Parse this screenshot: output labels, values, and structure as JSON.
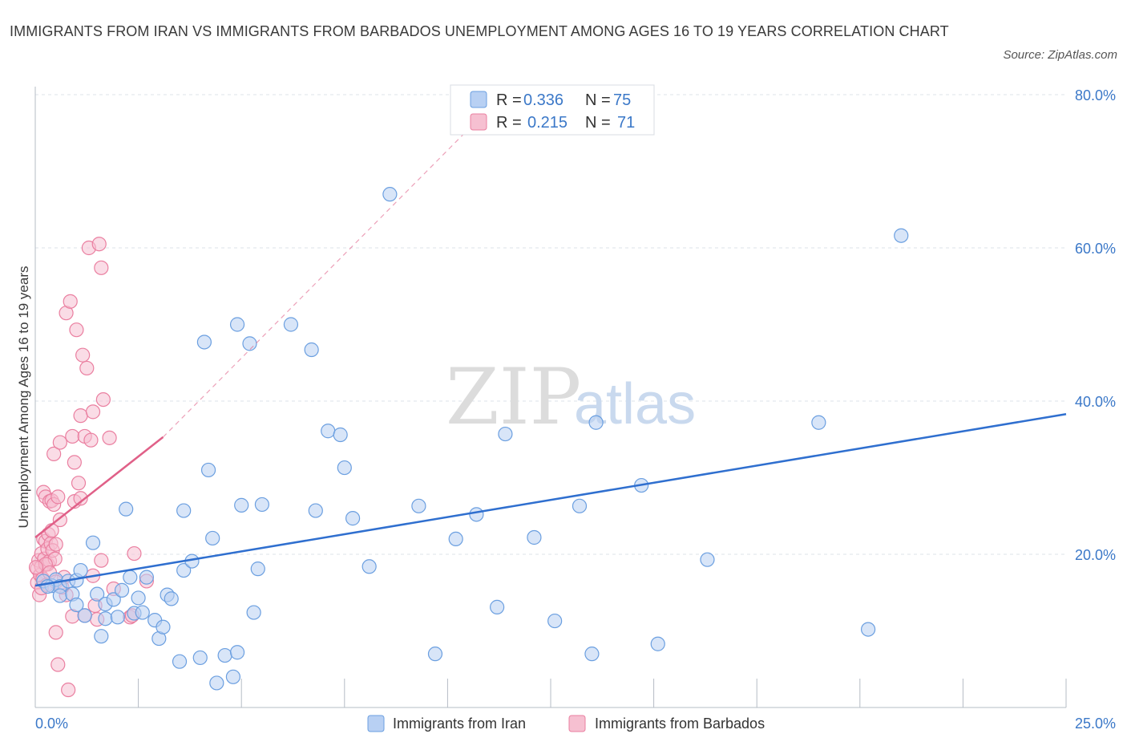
{
  "title": "IMMIGRANTS FROM IRAN VS IMMIGRANTS FROM BARBADOS UNEMPLOYMENT AMONG AGES 16 TO 19 YEARS CORRELATION CHART",
  "source": "Source: ZipAtlas.com",
  "watermark": {
    "zip": "ZIP",
    "atlas": "atlas"
  },
  "colors": {
    "iran": "#6b9fe0",
    "iran_fill": "#b8d0f3",
    "iran_line": "#2f6fcf",
    "barbados": "#ea7fa0",
    "barbados_fill": "#f6c0d1",
    "barbados_line": "#e06088",
    "grid": "#dde3ea",
    "axis_text": "#3b78c8"
  },
  "legend": {
    "iran": {
      "r_label": "R =",
      "r_value": "0.336",
      "n_label": "N =",
      "n_value": "75"
    },
    "barbados": {
      "r_label": "R =",
      "r_value": "0.215",
      "n_label": "N =",
      "n_value": "71"
    }
  },
  "bottom_legend": {
    "iran": "Immigrants from Iran",
    "barbados": "Immigrants from Barbados"
  },
  "chart_data": {
    "type": "scatter",
    "title": "IMMIGRANTS FROM IRAN VS IMMIGRANTS FROM BARBADOS UNEMPLOYMENT AMONG AGES 16 TO 19 YEARS CORRELATION CHART",
    "xlabel": "",
    "ylabel": "Unemployment Among Ages 16 to 19 years",
    "xlim": [
      0,
      25
    ],
    "ylim": [
      0,
      80
    ],
    "x_tick_labels": [
      "0.0%",
      "25.0%"
    ],
    "y_ticks": [
      20,
      40,
      60,
      80
    ],
    "y_tick_labels": [
      "20.0%",
      "40.0%",
      "60.0%",
      "80.0%"
    ],
    "series": [
      {
        "name": "Immigrants from Iran",
        "r": 0.336,
        "n": 75,
        "trend": {
          "x": [
            0,
            25
          ],
          "y": [
            15.9,
            38.3
          ]
        },
        "points": [
          [
            0.2,
            16.5
          ],
          [
            0.4,
            15.9
          ],
          [
            0.5,
            16.7
          ],
          [
            0.6,
            15.8
          ],
          [
            0.6,
            14.6
          ],
          [
            0.8,
            16.5
          ],
          [
            0.9,
            14.8
          ],
          [
            1.0,
            13.4
          ],
          [
            1.0,
            16.6
          ],
          [
            1.1,
            17.9
          ],
          [
            1.2,
            12.0
          ],
          [
            1.4,
            21.5
          ],
          [
            1.5,
            14.8
          ],
          [
            1.6,
            9.3
          ],
          [
            1.7,
            11.6
          ],
          [
            1.7,
            13.5
          ],
          [
            1.9,
            14.1
          ],
          [
            2.0,
            11.8
          ],
          [
            2.1,
            15.3
          ],
          [
            2.2,
            25.9
          ],
          [
            2.3,
            17.0
          ],
          [
            2.4,
            12.3
          ],
          [
            2.5,
            14.3
          ],
          [
            2.6,
            12.4
          ],
          [
            2.7,
            17.0
          ],
          [
            2.9,
            11.4
          ],
          [
            3.0,
            9.0
          ],
          [
            3.1,
            10.5
          ],
          [
            3.2,
            14.7
          ],
          [
            3.3,
            14.2
          ],
          [
            3.5,
            6.0
          ],
          [
            3.6,
            17.9
          ],
          [
            3.6,
            25.7
          ],
          [
            3.8,
            19.1
          ],
          [
            4.0,
            6.5
          ],
          [
            4.1,
            47.7
          ],
          [
            4.2,
            31.0
          ],
          [
            4.3,
            22.1
          ],
          [
            4.4,
            3.2
          ],
          [
            4.6,
            6.8
          ],
          [
            4.8,
            4.0
          ],
          [
            4.9,
            7.2
          ],
          [
            4.9,
            50.0
          ],
          [
            5.0,
            26.4
          ],
          [
            5.2,
            47.5
          ],
          [
            5.3,
            12.4
          ],
          [
            5.4,
            18.1
          ],
          [
            5.5,
            26.5
          ],
          [
            6.2,
            50.0
          ],
          [
            6.7,
            46.7
          ],
          [
            6.8,
            25.7
          ],
          [
            7.1,
            36.1
          ],
          [
            7.4,
            35.6
          ],
          [
            7.5,
            31.3
          ],
          [
            7.7,
            24.7
          ],
          [
            8.1,
            18.4
          ],
          [
            8.6,
            67.0
          ],
          [
            9.3,
            26.3
          ],
          [
            9.7,
            7.0
          ],
          [
            10.2,
            22.0
          ],
          [
            10.7,
            25.2
          ],
          [
            11.2,
            13.1
          ],
          [
            11.4,
            35.7
          ],
          [
            12.1,
            22.2
          ],
          [
            12.6,
            11.3
          ],
          [
            13.2,
            26.3
          ],
          [
            13.5,
            7.0
          ],
          [
            13.6,
            37.2
          ],
          [
            14.7,
            29.0
          ],
          [
            15.1,
            8.3
          ],
          [
            16.3,
            19.3
          ],
          [
            19.0,
            37.2
          ],
          [
            20.2,
            10.2
          ],
          [
            21.0,
            61.6
          ],
          [
            0.3,
            15.8
          ]
        ]
      },
      {
        "name": "Immigrants from Barbados",
        "r": 0.215,
        "n": 71,
        "trend": {
          "x": [
            0,
            3.1
          ],
          "y": [
            22.2,
            35.3
          ]
        },
        "trend_extended": {
          "x": [
            3.1,
            10.6
          ],
          "y": [
            35.3,
            76.0
          ]
        },
        "points": [
          [
            0.05,
            16.3
          ],
          [
            0.05,
            18.1
          ],
          [
            0.08,
            19.2
          ],
          [
            0.1,
            14.7
          ],
          [
            0.12,
            17.3
          ],
          [
            0.15,
            18.4
          ],
          [
            0.15,
            20.1
          ],
          [
            0.18,
            16.8
          ],
          [
            0.2,
            22.0
          ],
          [
            0.2,
            28.1
          ],
          [
            0.22,
            19.4
          ],
          [
            0.25,
            21.7
          ],
          [
            0.25,
            27.5
          ],
          [
            0.28,
            16.0
          ],
          [
            0.3,
            18.7
          ],
          [
            0.3,
            20.7
          ],
          [
            0.32,
            22.6
          ],
          [
            0.35,
            19.1
          ],
          [
            0.35,
            26.9
          ],
          [
            0.38,
            21.4
          ],
          [
            0.4,
            23.1
          ],
          [
            0.4,
            27.0
          ],
          [
            0.42,
            20.5
          ],
          [
            0.45,
            26.5
          ],
          [
            0.45,
            33.1
          ],
          [
            0.48,
            19.4
          ],
          [
            0.5,
            21.3
          ],
          [
            0.5,
            9.8
          ],
          [
            0.55,
            5.6
          ],
          [
            0.55,
            27.5
          ],
          [
            0.6,
            24.5
          ],
          [
            0.6,
            34.6
          ],
          [
            0.7,
            17.0
          ],
          [
            0.75,
            14.7
          ],
          [
            0.75,
            51.5
          ],
          [
            0.8,
            2.3
          ],
          [
            0.85,
            53.0
          ],
          [
            0.9,
            35.4
          ],
          [
            0.9,
            11.9
          ],
          [
            0.95,
            32.0
          ],
          [
            0.95,
            26.9
          ],
          [
            1.0,
            49.3
          ],
          [
            1.05,
            29.3
          ],
          [
            1.1,
            27.3
          ],
          [
            1.1,
            38.1
          ],
          [
            1.15,
            46.0
          ],
          [
            1.2,
            35.4
          ],
          [
            1.2,
            12.0
          ],
          [
            1.25,
            44.3
          ],
          [
            1.3,
            60.0
          ],
          [
            1.35,
            34.9
          ],
          [
            1.4,
            38.6
          ],
          [
            1.4,
            17.2
          ],
          [
            1.45,
            13.3
          ],
          [
            1.5,
            11.5
          ],
          [
            1.55,
            60.5
          ],
          [
            1.6,
            57.4
          ],
          [
            1.6,
            19.2
          ],
          [
            1.65,
            40.2
          ],
          [
            1.8,
            35.2
          ],
          [
            1.9,
            15.5
          ],
          [
            2.3,
            11.8
          ],
          [
            2.35,
            12.0
          ],
          [
            2.4,
            20.1
          ],
          [
            2.7,
            16.5
          ],
          [
            0.15,
            15.6
          ],
          [
            0.25,
            18.7
          ],
          [
            0.35,
            17.6
          ],
          [
            0.5,
            16.4
          ],
          [
            0.65,
            15.7
          ],
          [
            0.02,
            18.3
          ]
        ]
      }
    ]
  }
}
